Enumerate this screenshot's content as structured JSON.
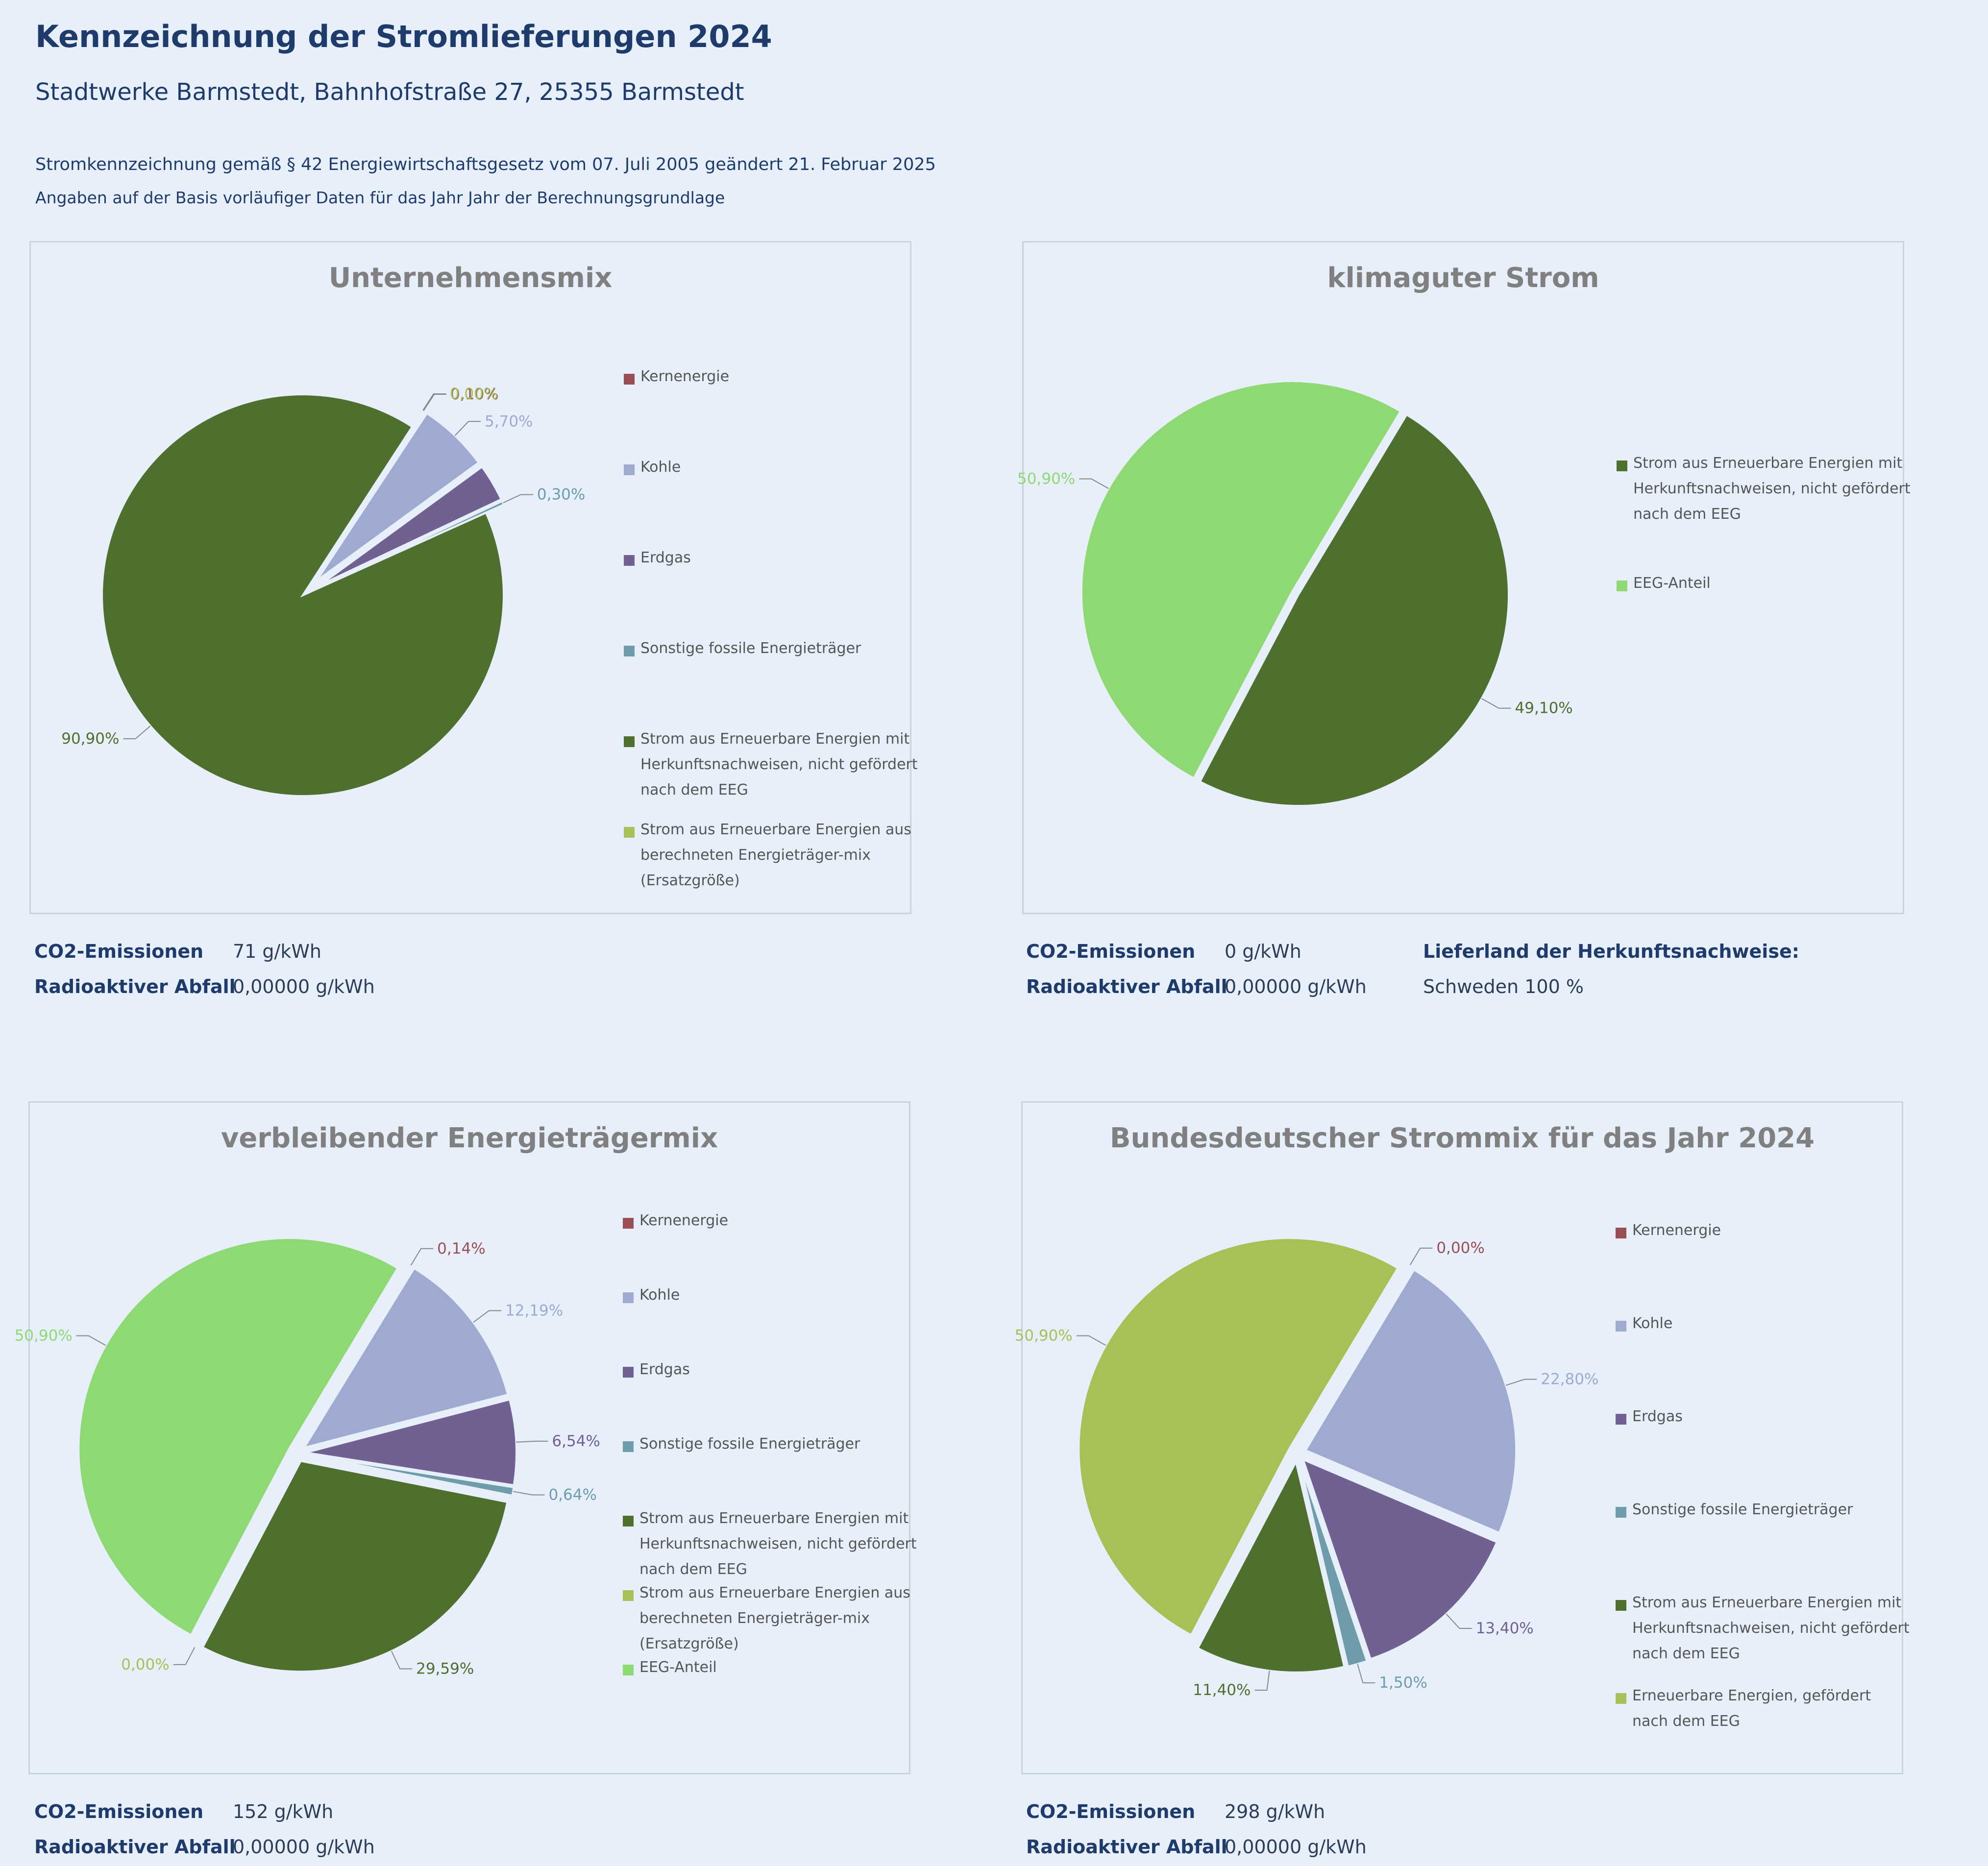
{
  "header": {
    "title": "Kennzeichnung der Stromlieferungen 2024",
    "subtitle": "Stadtwerke Barmstedt, Bahnhofstraße 27, 25355 Barmstedt",
    "note1": "Stromkennzeichnung gemäß § 42 Energiewirtschaftsgesetz vom 07. Juli 2005 geändert 21. Februar 2025",
    "note2": "Angaben auf der Basis vorläufiger Daten für das Jahr Jahr der Berechnungsgrundlage"
  },
  "colors": {
    "Kernenergie": "#9b4f54",
    "Kohle": "#9eaacf",
    "Erdgas": "#716092",
    "Sonstige": "#6f9cab",
    "HKN": "#4e6f2e",
    "Ersatz": "#a6c256",
    "EEG": "#8fd974",
    "EEGgef": "#a6c256"
  },
  "chart_data": [
    {
      "type": "pie",
      "title": "Unternehmensmix",
      "slices": [
        {
          "label": "Kernenergie",
          "value": 0.1,
          "display": "0,10%",
          "color": "#9b4f54"
        },
        {
          "label": "Kohle",
          "value": 5.7,
          "display": "5,70%",
          "color": "#9eaacf"
        },
        {
          "label": "Erdgas",
          "value": 3.0,
          "display": "",
          "color": "#716092"
        },
        {
          "label": "Sonstige fossile Energieträger",
          "value": 0.3,
          "display": "0,30%",
          "color": "#6f9cab"
        },
        {
          "label": "Strom aus Erneuerbare Energien mit Herkunftsnachweisen, nicht gefördert nach dem EEG",
          "value": 90.9,
          "display": "90,90%",
          "color": "#4e6f2e"
        },
        {
          "label": "Strom aus Erneuerbare Energien aus berechneten Energieträger-mix (Ersatzgröße)",
          "value": 0.0,
          "display": "0,00%",
          "color": "#a6c256"
        }
      ],
      "legend": [
        "Kernenergie",
        "Kohle",
        "Erdgas",
        "Sonstige fossile Energieträger",
        "Strom aus Erneuerbare Energien mit Herkunftsnachweisen, nicht gefördert nach dem EEG",
        "Strom aus Erneuerbare Energien aus berechneten Energieträger-mix (Ersatzgröße)"
      ]
    },
    {
      "type": "pie",
      "title": "klimaguter Strom",
      "slices": [
        {
          "label": "Strom aus Erneuerbare Energien mit Herkunftsnachweisen, nicht gefördert nach dem EEG",
          "value": 49.1,
          "display": "49,10%",
          "color": "#4e6f2e"
        },
        {
          "label": "EEG-Anteil",
          "value": 50.9,
          "display": "50,90%",
          "color": "#8fd974"
        }
      ],
      "legend": [
        "Strom aus Erneuerbare Energien mit Herkunftsnachweisen, nicht gefördert nach dem EEG",
        "EEG-Anteil"
      ]
    },
    {
      "type": "pie",
      "title": "verbleibender Energieträgermix",
      "slices": [
        {
          "label": "Kernenergie",
          "value": 0.14,
          "display": "0,14%",
          "color": "#9b4f54"
        },
        {
          "label": "Kohle",
          "value": 12.19,
          "display": "12,19%",
          "color": "#9eaacf"
        },
        {
          "label": "Erdgas",
          "value": 6.54,
          "display": "6,54%",
          "color": "#716092"
        },
        {
          "label": "Sonstige fossile Energieträger",
          "value": 0.64,
          "display": "0,64%",
          "color": "#6f9cab"
        },
        {
          "label": "Strom aus Erneuerbare Energien mit Herkunftsnachweisen, nicht gefördert nach dem EEG",
          "value": 29.59,
          "display": "29,59%",
          "color": "#4e6f2e"
        },
        {
          "label": "Strom aus Erneuerbare Energien aus berechneten Energieträger-mix (Ersatzgröße)",
          "value": 0.0,
          "display": "0,00%",
          "color": "#a6c256"
        },
        {
          "label": "EEG-Anteil",
          "value": 50.9,
          "display": "50,90%",
          "color": "#8fd974"
        }
      ],
      "legend": [
        "Kernenergie",
        "Kohle",
        "Erdgas",
        "Sonstige fossile Energieträger",
        "Strom aus Erneuerbare Energien mit Herkunftsnachweisen, nicht gefördert nach dem EEG",
        "Strom aus Erneuerbare Energien aus berechneten Energieträger-mix (Ersatzgröße)",
        "EEG-Anteil"
      ]
    },
    {
      "type": "pie",
      "title": "Bundesdeutscher Strommix für das Jahr 2024",
      "slices": [
        {
          "label": "Kernenergie",
          "value": 0.0,
          "display": "0,00%",
          "color": "#9b4f54"
        },
        {
          "label": "Kohle",
          "value": 22.8,
          "display": "22,80%",
          "color": "#9eaacf"
        },
        {
          "label": "Erdgas",
          "value": 13.4,
          "display": "13,40%",
          "color": "#716092"
        },
        {
          "label": "Sonstige fossile Energieträger",
          "value": 1.5,
          "display": "1,50%",
          "color": "#6f9cab"
        },
        {
          "label": "Strom aus Erneuerbare Energien mit Herkunftsnachweisen, nicht gefördert nach dem EEG",
          "value": 11.4,
          "display": "11,40%",
          "color": "#4e6f2e"
        },
        {
          "label": "Erneuerbare Energien, gefördert nach dem EEG",
          "value": 50.9,
          "display": "50,90%",
          "color": "#a6c256"
        }
      ],
      "legend": [
        "Kernenergie",
        "Kohle",
        "Erdgas",
        "Sonstige fossile Energieträger",
        "Strom aus Erneuerbare Energien mit Herkunftsnachweisen, nicht gefördert nach dem EEG",
        "Erneuerbare Energien, gefördert nach dem EEG"
      ]
    }
  ],
  "info": [
    {
      "co2_label": "CO2-Emissionen",
      "co2_value": "71 g/kWh",
      "waste_label": "Radioaktiver Abfall",
      "waste_value": "0,00000 g/kWh"
    },
    {
      "co2_label": "CO2-Emissionen",
      "co2_value": "0 g/kWh",
      "waste_label": "Radioaktiver Abfall",
      "waste_value": "0,00000 g/kWh",
      "country_label": "Lieferland der Herkunftsnachweise:",
      "country_value": "Schweden 100 %"
    },
    {
      "co2_label": "CO2-Emissionen",
      "co2_value": "152 g/kWh",
      "waste_label": "Radioaktiver Abfall",
      "waste_value": "0,00000 g/kWh"
    },
    {
      "co2_label": "CO2-Emissionen",
      "co2_value": "298 g/kWh",
      "waste_label": "Radioaktiver Abfall",
      "waste_value": "0,00000 g/kWh"
    }
  ]
}
